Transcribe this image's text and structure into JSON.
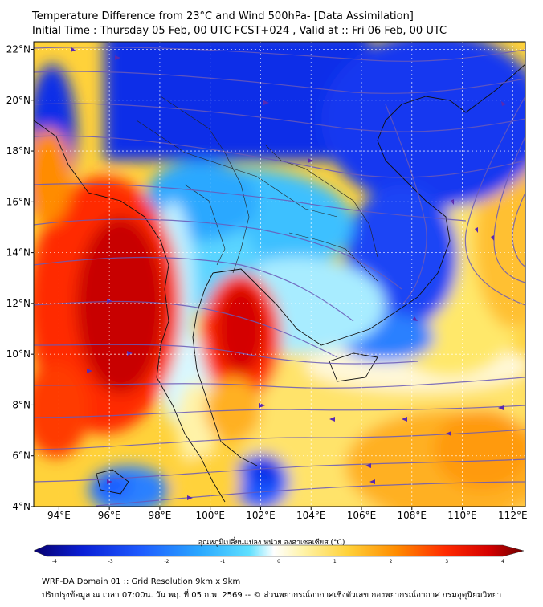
{
  "title": {
    "line1": "Temperature Difference from 23°C and Wind 500hPa- [Data Assimilation]",
    "line2": "Initial Time : Thursday 05 Feb, 00 UTC FCST+024 , Valid at ::  Fri 06 Feb, 00 UTC"
  },
  "map": {
    "lon_range": [
      93,
      112.5
    ],
    "lat_range": [
      4,
      22.3
    ],
    "lon_ticks": [
      "94°E",
      "96°E",
      "98°E",
      "100°E",
      "102°E",
      "104°E",
      "106°E",
      "108°E",
      "110°E",
      "112°E"
    ],
    "lat_ticks": [
      "22°N",
      "20°N",
      "18°N",
      "16°N",
      "14°N",
      "12°N",
      "10°N",
      "8°N",
      "6°N",
      "4°N"
    ],
    "field": "temperature difference from 23°C",
    "vectors": "streamlines, wind 500hPa"
  },
  "colorbar": {
    "label": "อุณหภูมิเปลี่ยนแปลง หน่วย องศาเซลเซียส (°C)",
    "ticks": [
      "-4",
      "-3",
      "-2",
      "-1",
      "0",
      "1",
      "2",
      "3",
      "4"
    ],
    "colors": [
      "#08006e",
      "#0a1fd6",
      "#1e5cff",
      "#2aa8ff",
      "#5fe0ff",
      "#c8f4ff",
      "#ffffff",
      "#fff3a8",
      "#ffd23a",
      "#ff8c00",
      "#ff2a00",
      "#d40000",
      "#6e0000"
    ]
  },
  "footer": {
    "line1": "WRF-DA Domain 01 :: Grid Resolution 9km x 9km",
    "line2": "ปรับปรุงข้อมูล ณ เวลา 07:00น. วัน พฤ. ที่ 05 ก.พ. 2569 -- © ส่วนพยากรณ์อากาศเชิงตัวเลข กองพยากรณ์อากาศ กรมอุตุนิยมวิทยา"
  }
}
